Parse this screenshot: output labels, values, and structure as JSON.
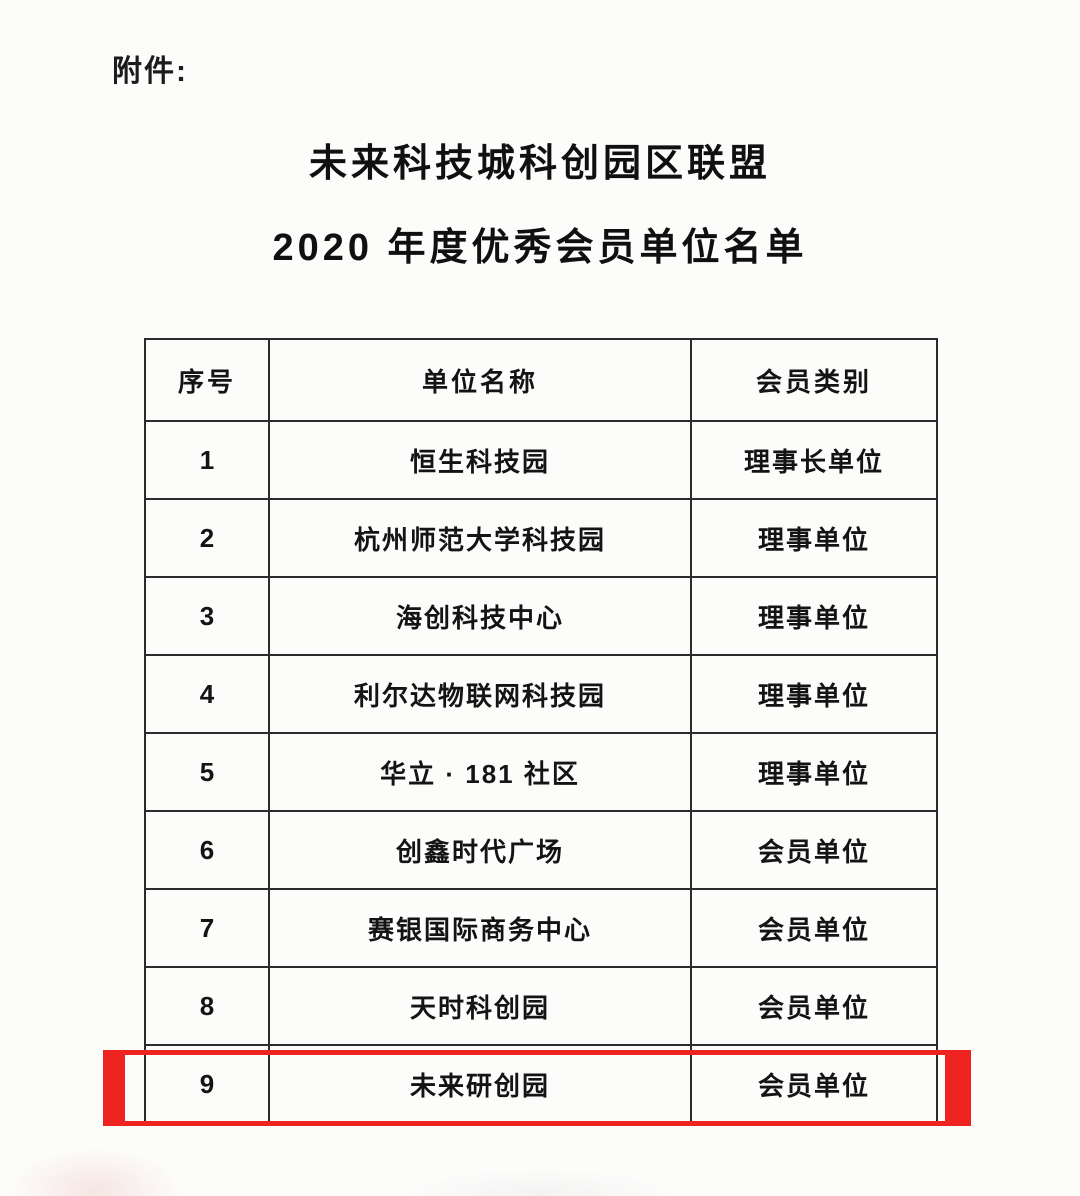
{
  "page": {
    "attachment_label": "附件:",
    "title_line1": "未来科技城科创园区联盟",
    "title_line2": "2020 年度优秀会员单位名单"
  },
  "table": {
    "headers": [
      "序号",
      "单位名称",
      "会员类别"
    ],
    "rows": [
      {
        "no": "1",
        "name": "恒生科技园",
        "category": "理事长单位",
        "highlighted": false
      },
      {
        "no": "2",
        "name": "杭州师范大学科技园",
        "category": "理事单位",
        "highlighted": false
      },
      {
        "no": "3",
        "name": "海创科技中心",
        "category": "理事单位",
        "highlighted": false
      },
      {
        "no": "4",
        "name": "利尔达物联网科技园",
        "category": "理事单位",
        "highlighted": false
      },
      {
        "no": "5",
        "name": "华立 · 181 社区",
        "category": "理事单位",
        "highlighted": false
      },
      {
        "no": "6",
        "name": "创鑫时代广场",
        "category": "会员单位",
        "highlighted": false
      },
      {
        "no": "7",
        "name": "赛银国际商务中心",
        "category": "会员单位",
        "highlighted": false
      },
      {
        "no": "8",
        "name": "天时科创园",
        "category": "会员单位",
        "highlighted": false
      },
      {
        "no": "9",
        "name": "未来研创园",
        "category": "会员单位",
        "highlighted": true
      }
    ]
  },
  "annotation": {
    "highlight_color": "#ee2420",
    "highlighted_row_no": "9"
  }
}
